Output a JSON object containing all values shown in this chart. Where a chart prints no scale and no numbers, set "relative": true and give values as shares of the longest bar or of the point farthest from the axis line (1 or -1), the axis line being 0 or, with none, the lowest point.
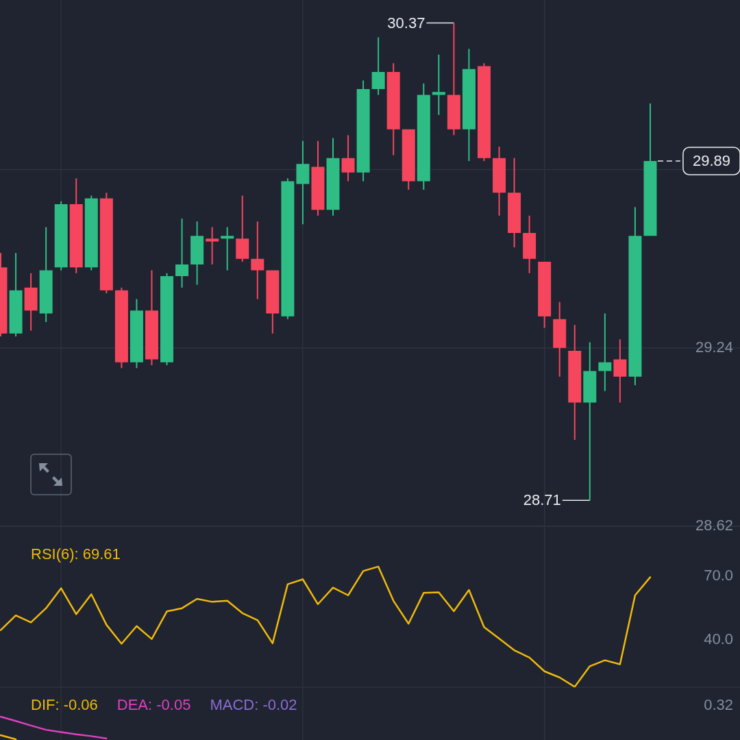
{
  "chart_data": [
    {
      "type": "candlestick",
      "categories": [
        null,
        null,
        null,
        null,
        null,
        null,
        null,
        null,
        null,
        null,
        null,
        null,
        null,
        null,
        null,
        null,
        null,
        null,
        null,
        null,
        null,
        null,
        null,
        null,
        null,
        null,
        null,
        null,
        null,
        null,
        null,
        null,
        null,
        null,
        null,
        null,
        null,
        null,
        null,
        null,
        null,
        null,
        null,
        null
      ],
      "ohlc": [
        [
          29.52,
          29.57,
          29.28,
          29.29
        ],
        [
          29.29,
          29.57,
          29.28,
          29.44
        ],
        [
          29.45,
          29.5,
          29.3,
          29.37
        ],
        [
          29.36,
          29.66,
          29.33,
          29.51
        ],
        [
          29.52,
          29.75,
          29.51,
          29.74
        ],
        [
          29.74,
          29.83,
          29.5,
          29.52
        ],
        [
          29.52,
          29.77,
          29.51,
          29.76
        ],
        [
          29.76,
          29.78,
          29.43,
          29.44
        ],
        [
          29.44,
          29.45,
          29.17,
          29.19
        ],
        [
          29.19,
          29.41,
          29.17,
          29.37
        ],
        [
          29.37,
          29.51,
          29.18,
          29.2
        ],
        [
          29.19,
          29.5,
          29.18,
          29.49
        ],
        [
          29.49,
          29.69,
          29.45,
          29.53
        ],
        [
          29.53,
          29.68,
          29.46,
          29.63
        ],
        [
          29.62,
          29.66,
          29.53,
          29.61
        ],
        [
          29.62,
          29.66,
          29.51,
          29.63
        ],
        [
          29.62,
          29.77,
          29.54,
          29.55
        ],
        [
          29.55,
          29.68,
          29.41,
          29.51
        ],
        [
          29.51,
          29.51,
          29.29,
          29.36
        ],
        [
          29.35,
          29.83,
          29.34,
          29.82
        ],
        [
          29.81,
          29.96,
          29.67,
          29.88
        ],
        [
          29.87,
          29.96,
          29.7,
          29.72
        ],
        [
          29.72,
          29.97,
          29.7,
          29.9
        ],
        [
          29.9,
          29.98,
          29.82,
          29.85
        ],
        [
          29.85,
          30.17,
          29.82,
          30.14
        ],
        [
          30.14,
          30.32,
          30.12,
          30.2
        ],
        [
          30.2,
          30.23,
          29.91,
          30.0
        ],
        [
          30.0,
          30.0,
          29.79,
          29.82
        ],
        [
          29.82,
          30.16,
          29.79,
          30.12
        ],
        [
          30.12,
          30.26,
          30.05,
          30.13
        ],
        [
          30.12,
          30.37,
          29.98,
          30.0
        ],
        [
          30.0,
          30.28,
          29.89,
          30.21
        ],
        [
          30.22,
          30.23,
          29.89,
          29.9
        ],
        [
          29.9,
          29.94,
          29.7,
          29.78
        ],
        [
          29.78,
          29.9,
          29.59,
          29.64
        ],
        [
          29.64,
          29.7,
          29.5,
          29.55
        ],
        [
          29.54,
          29.54,
          29.31,
          29.35
        ],
        [
          29.34,
          29.4,
          29.14,
          29.24
        ],
        [
          29.23,
          29.32,
          28.92,
          29.05
        ],
        [
          29.05,
          29.26,
          28.71,
          29.16
        ],
        [
          29.16,
          29.36,
          29.09,
          29.19
        ],
        [
          29.2,
          29.27,
          29.05,
          29.14
        ],
        [
          29.14,
          29.73,
          29.11,
          29.63
        ],
        [
          29.63,
          30.09,
          29.63,
          29.89
        ]
      ],
      "colors": [
        "#f6465d",
        "#2ebd85",
        "#f6465d",
        "#2ebd85",
        "#2ebd85",
        "#f6465d",
        "#2ebd85",
        "#f6465d",
        "#f6465d",
        "#2ebd85",
        "#f6465d",
        "#2ebd85",
        "#2ebd85",
        "#2ebd85",
        "#f6465d",
        "#2ebd85",
        "#f6465d",
        "#f6465d",
        "#f6465d",
        "#2ebd85",
        "#2ebd85",
        "#f6465d",
        "#2ebd85",
        "#f6465d",
        "#2ebd85",
        "#2ebd85",
        "#f6465d",
        "#f6465d",
        "#2ebd85",
        "#2ebd85",
        "#f6465d",
        "#2ebd85",
        "#f6465d",
        "#f6465d",
        "#f6465d",
        "#f6465d",
        "#f6465d",
        "#f6465d",
        "#f6465d",
        "#2ebd85",
        "#2ebd85",
        "#f6465d",
        "#2ebd85",
        "#2ebd85"
      ],
      "ylim": [
        28.62,
        30.45
      ],
      "yticks": [
        28.62,
        29.24,
        {
          "value": 29.86,
          "label": null
        }
      ],
      "grid": true,
      "annotations": [
        "30.37",
        "28.71"
      ],
      "ref_lines": [
        {
          "axis": "y",
          "value": 29.89,
          "label": "29.89",
          "color": "#eaecef",
          "line_style": "dashed"
        }
      ]
    },
    {
      "type": "line",
      "categories": [
        null,
        null,
        null,
        null,
        null,
        null,
        null,
        null,
        null,
        null,
        null,
        null,
        null,
        null,
        null,
        null,
        null,
        null,
        null,
        null,
        null,
        null,
        null,
        null,
        null,
        null,
        null,
        null,
        null,
        null,
        null,
        null,
        null,
        null,
        null,
        null,
        null,
        null,
        null,
        null,
        null,
        null,
        null,
        null
      ],
      "series": [
        {
          "name": "RSI(6): 69.61",
          "color": "#f0b90b",
          "values": [
            44.7,
            51.6,
            48.3,
            55.0,
            64.4,
            52.2,
            61.6,
            47.2,
            38.3,
            46.6,
            40.5,
            53.5,
            55.0,
            59.4,
            58.0,
            58.5,
            52.7,
            49.4,
            38.5,
            66.3,
            68.6,
            56.9,
            64.7,
            61.1,
            72.5,
            74.6,
            58.5,
            47.7,
            62.2,
            62.5,
            53.6,
            63.6,
            46.1,
            40.7,
            35.2,
            31.8,
            25.3,
            22.4,
            18.0,
            27.7,
            30.5,
            28.6,
            61.1,
            69.61
          ]
        }
      ],
      "ylim": [
        17.8,
        93.6
      ],
      "yticks": [
        {
          "value": 70,
          "label": "70.0"
        },
        {
          "value": 40,
          "label": "40.0"
        }
      ],
      "grid": "x",
      "legend": "top left"
    },
    {
      "type": "line",
      "relative": true,
      "categories": [
        null,
        null,
        null,
        null,
        null,
        null,
        null,
        null,
        null,
        null,
        null,
        null,
        null,
        null,
        null,
        null,
        null,
        null,
        null,
        null,
        null,
        null,
        null,
        null,
        null,
        null,
        null,
        null,
        null,
        null,
        null,
        null,
        null,
        null,
        null,
        null,
        null,
        null,
        null,
        null,
        null,
        null,
        null,
        null
      ],
      "series": [
        {
          "name": "DIF: -0.06",
          "color": "#f0b90b",
          "values": [
            0.18,
            0,
            null,
            null,
            null,
            null,
            null,
            null,
            null,
            null,
            null,
            null,
            null,
            null,
            null,
            null,
            null,
            null,
            null,
            null,
            null,
            null,
            null,
            null,
            null,
            null,
            null,
            null,
            null,
            null,
            null,
            null,
            null,
            null,
            null,
            null,
            null,
            null,
            null,
            null,
            null,
            null,
            null,
            null
          ]
        },
        {
          "name": "DEA: -0.05",
          "color": "#e040c0",
          "values": [
            1,
            0.81,
            0.61,
            0.42,
            0.32,
            0.22,
            0.14,
            0.04,
            null,
            null,
            null,
            null,
            null,
            null,
            null,
            null,
            null,
            null,
            null,
            null,
            null,
            null,
            null,
            null,
            null,
            null,
            null,
            null,
            null,
            null,
            null,
            null,
            null,
            null,
            null,
            null,
            null,
            null,
            null,
            null,
            null,
            null,
            null,
            null
          ]
        },
        {
          "name": "MACD: -0.02",
          "color": "#8e6cd6",
          "values": [
            null,
            null,
            null,
            null,
            null,
            null,
            null,
            null,
            null,
            null,
            null,
            null,
            null,
            null,
            null,
            null,
            null,
            null,
            null,
            null,
            null,
            null,
            null,
            null,
            null,
            null,
            null,
            null,
            null,
            null,
            null,
            null,
            null,
            null,
            null,
            null,
            null,
            null,
            null,
            null,
            null,
            null,
            null,
            null
          ]
        }
      ],
      "annotations": [
        "0.32"
      ],
      "grid": "x",
      "legend": "top left"
    }
  ]
}
